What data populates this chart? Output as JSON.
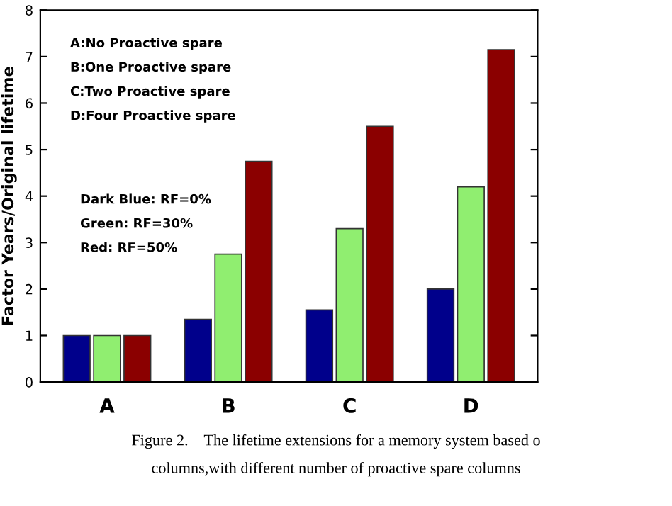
{
  "chart_data": {
    "type": "bar",
    "ylabel": "Factor Years/Original lifetime",
    "categories": [
      "A",
      "B",
      "C",
      "D"
    ],
    "series": [
      {
        "color": "#00008b",
        "values": [
          1,
          1.35,
          1.55,
          2.0
        ]
      },
      {
        "color": "#90ee70",
        "values": [
          1,
          2.75,
          3.3,
          4.2
        ]
      },
      {
        "color": "#8b0000",
        "values": [
          1,
          4.75,
          5.5,
          7.15
        ]
      }
    ],
    "ylim": [
      0,
      8
    ],
    "yticks": [
      0,
      1,
      2,
      3,
      4,
      5,
      6,
      7,
      8
    ],
    "grid": false,
    "annotations": [
      "A:No Proactive spare",
      "B:One Proactive spare",
      "C:Two Proactive spare",
      "D:Four Proactive spare",
      "Dark Blue: RF=0%",
      "Green: RF=30%",
      "Red: RF=50%",
      "Figure 2.    The lifetime extensions for a memory system based o",
      "columns,with different number of proactive spare columns"
    ]
  }
}
